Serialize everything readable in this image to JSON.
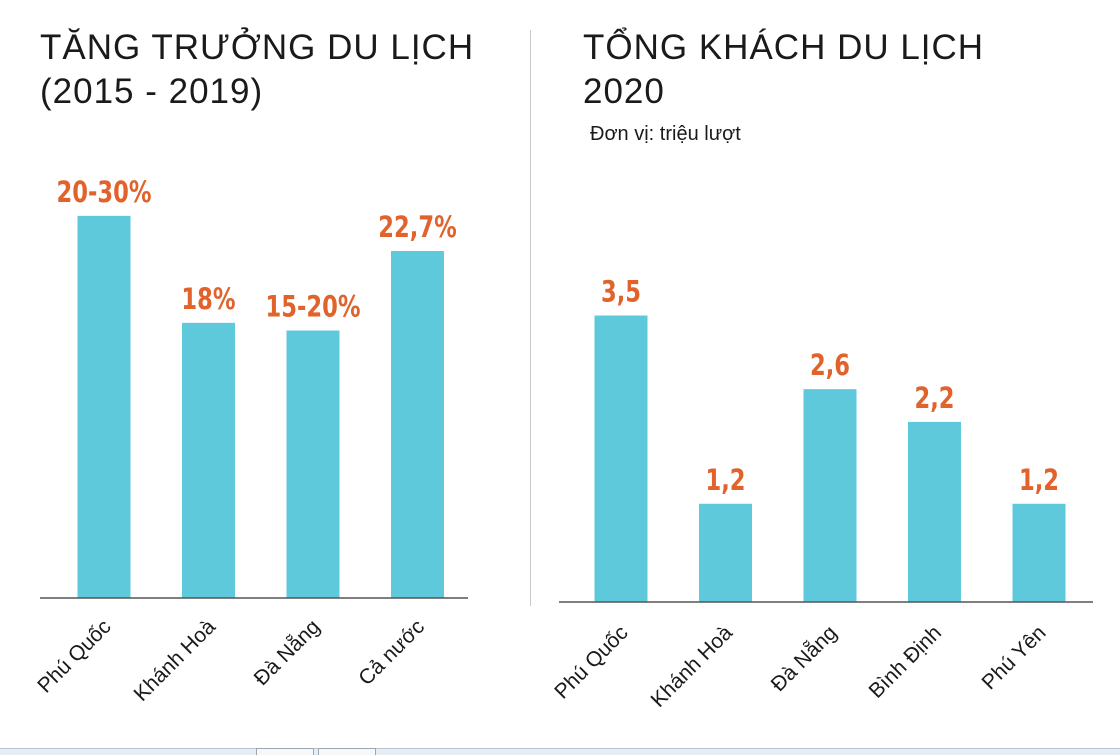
{
  "colors": {
    "bar": "#5fc9dc",
    "value_label": "#e1622b",
    "axis": "#555555",
    "text": "#1a1a1a"
  },
  "chart_data": [
    {
      "type": "bar",
      "title": "TĂNG TRƯỞNG DU LỊCH\n(2015 - 2019)",
      "subtitle": "",
      "categories": [
        "Phú Quốc",
        "Khánh Hoà",
        "Đà Nẵng",
        "Cả nước"
      ],
      "values": [
        25,
        18,
        17.5,
        22.7
      ],
      "value_labels": [
        "20-30%",
        "18%",
        "15-20%",
        "22,7%"
      ],
      "ylim": [
        0,
        28
      ],
      "grid": false,
      "legend": "none"
    },
    {
      "type": "bar",
      "title": "TỔNG KHÁCH DU LỊCH\n2020",
      "subtitle": "Đơn vị: triệu lượt",
      "categories": [
        "Phú Quốc",
        "Khánh Hoà",
        "Đà Nẵng",
        "Bình Định",
        "Phú Yên"
      ],
      "values": [
        3.5,
        1.2,
        2.6,
        2.2,
        1.2
      ],
      "value_labels": [
        "3,5",
        "1,2",
        "2,6",
        "2,2",
        "1,2"
      ],
      "ylim": [
        0,
        4.3
      ],
      "grid": false,
      "legend": "none"
    }
  ]
}
